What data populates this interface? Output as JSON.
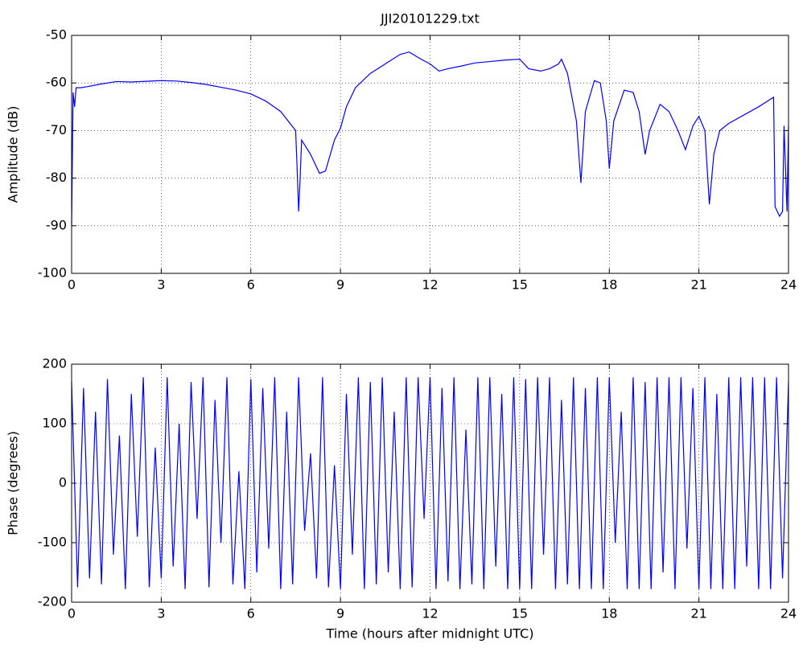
{
  "chart_data": [
    {
      "type": "line",
      "title": "JJI20101229.txt",
      "ylabel": "Amplitude (dB)",
      "xlim": [
        0,
        24
      ],
      "xticks": [
        0,
        3,
        6,
        9,
        12,
        15,
        18,
        21,
        24
      ],
      "ylim": [
        -100,
        -50
      ],
      "yticks": [
        -100,
        -90,
        -80,
        -70,
        -60,
        -50
      ],
      "grid": true,
      "x": [
        0,
        0.05,
        0.1,
        0.15,
        0.3,
        0.5,
        1,
        1.5,
        2,
        3,
        3.5,
        4,
        4.5,
        5,
        5.5,
        6,
        6.5,
        7,
        7.5,
        7.55,
        7.6,
        7.65,
        7.7,
        8,
        8.3,
        8.5,
        8.8,
        9,
        9.2,
        9.5,
        10,
        10.5,
        11,
        11.3,
        11.7,
        12,
        12.3,
        12.6,
        13,
        13.5,
        14,
        14.5,
        15,
        15.3,
        15.7,
        16,
        16.3,
        16.4,
        16.6,
        16.9,
        17.05,
        17.2,
        17.5,
        17.7,
        17.9,
        18,
        18.15,
        18.5,
        18.8,
        19,
        19.2,
        19.35,
        19.7,
        20,
        20.3,
        20.55,
        20.8,
        21,
        21.2,
        21.35,
        21.5,
        21.7,
        22,
        23,
        23.5,
        23.55,
        23.7,
        23.8,
        23.85,
        23.95,
        24
      ],
      "series": [
        {
          "color": "#0000ff",
          "values": [
            -90,
            -62,
            -65,
            -61,
            -61,
            -60.8,
            -60.2,
            -59.7,
            -59.8,
            -59.5,
            -59.6,
            -59.9,
            -60.3,
            -60.9,
            -61.5,
            -62.3,
            -63.8,
            -66,
            -70,
            -78,
            -87,
            -80,
            -72,
            -75,
            -79,
            -78.5,
            -72,
            -69.5,
            -65,
            -61,
            -58,
            -56,
            -54,
            -53.5,
            -55,
            -56,
            -57.5,
            -57,
            -56.5,
            -55.8,
            -55.5,
            -55.2,
            -55,
            -57,
            -57.5,
            -57,
            -56,
            -55,
            -58,
            -68,
            -81,
            -66,
            -59.5,
            -60,
            -68,
            -78,
            -68,
            -61.5,
            -62,
            -66,
            -75,
            -70,
            -64.5,
            -66,
            -70,
            -74,
            -69,
            -67,
            -70,
            -85.5,
            -75,
            -70,
            -68.5,
            -65,
            -63,
            -86,
            -88,
            -87,
            -69,
            -87,
            -69
          ]
        }
      ]
    },
    {
      "type": "line",
      "xlabel": "Time (hours after midnight UTC)",
      "ylabel": "Phase (degrees)",
      "xlim": [
        0,
        24
      ],
      "xticks": [
        0,
        3,
        6,
        9,
        12,
        15,
        18,
        21,
        24
      ],
      "ylim": [
        -200,
        200
      ],
      "yticks": [
        -200,
        -100,
        0,
        100,
        200
      ],
      "grid": true,
      "x": [
        0,
        0.2,
        0.4,
        0.6,
        0.8,
        1,
        1.2,
        1.4,
        1.6,
        1.8,
        2,
        2.2,
        2.4,
        2.6,
        2.8,
        3,
        3.2,
        3.4,
        3.6,
        3.8,
        4,
        4.2,
        4.4,
        4.6,
        4.8,
        5,
        5.2,
        5.4,
        5.6,
        5.8,
        6,
        6.2,
        6.4,
        6.6,
        6.8,
        7,
        7.2,
        7.4,
        7.6,
        7.8,
        8,
        8.2,
        8.4,
        8.6,
        8.8,
        9,
        9.2,
        9.4,
        9.6,
        9.8,
        10,
        10.2,
        10.4,
        10.6,
        10.8,
        11,
        11.2,
        11.4,
        11.6,
        11.8,
        12,
        12.2,
        12.4,
        12.6,
        12.8,
        13,
        13.2,
        13.4,
        13.6,
        13.8,
        14,
        14.2,
        14.4,
        14.6,
        14.8,
        15,
        15.2,
        15.4,
        15.6,
        15.8,
        16,
        16.2,
        16.4,
        16.6,
        16.8,
        17,
        17.2,
        17.4,
        17.6,
        17.8,
        18,
        18.2,
        18.4,
        18.6,
        18.8,
        19,
        19.2,
        19.4,
        19.6,
        19.8,
        20,
        20.2,
        20.4,
        20.6,
        20.8,
        21,
        21.2,
        21.4,
        21.6,
        21.8,
        22,
        22.2,
        22.4,
        22.6,
        22.8,
        23,
        23.2,
        23.4,
        23.6,
        23.8,
        24
      ],
      "series": [
        {
          "color": "#0000ff",
          "values": [
            170,
            -175,
            160,
            -160,
            120,
            -170,
            175,
            -120,
            80,
            -178,
            150,
            -90,
            178,
            -175,
            60,
            -160,
            178,
            -140,
            100,
            -178,
            170,
            -60,
            178,
            -175,
            140,
            -100,
            178,
            -170,
            20,
            -178,
            175,
            -150,
            160,
            -110,
            178,
            -178,
            120,
            -170,
            178,
            -80,
            50,
            -160,
            178,
            -175,
            30,
            -178,
            150,
            -120,
            178,
            -178,
            170,
            -170,
            178,
            -150,
            120,
            -178,
            178,
            -175,
            178,
            -60,
            178,
            -178,
            160,
            -165,
            178,
            -178,
            90,
            -170,
            178,
            -178,
            178,
            -140,
            150,
            -178,
            178,
            -178,
            175,
            -178,
            178,
            -120,
            178,
            -178,
            140,
            -170,
            178,
            -178,
            160,
            -178,
            178,
            -178,
            178,
            -100,
            120,
            -178,
            178,
            -178,
            170,
            -178,
            178,
            -150,
            178,
            -178,
            178,
            -110,
            160,
            -178,
            178,
            -178,
            150,
            -178,
            178,
            -178,
            178,
            -140,
            178,
            -178,
            178,
            -178,
            178,
            -160,
            170
          ]
        }
      ]
    }
  ]
}
